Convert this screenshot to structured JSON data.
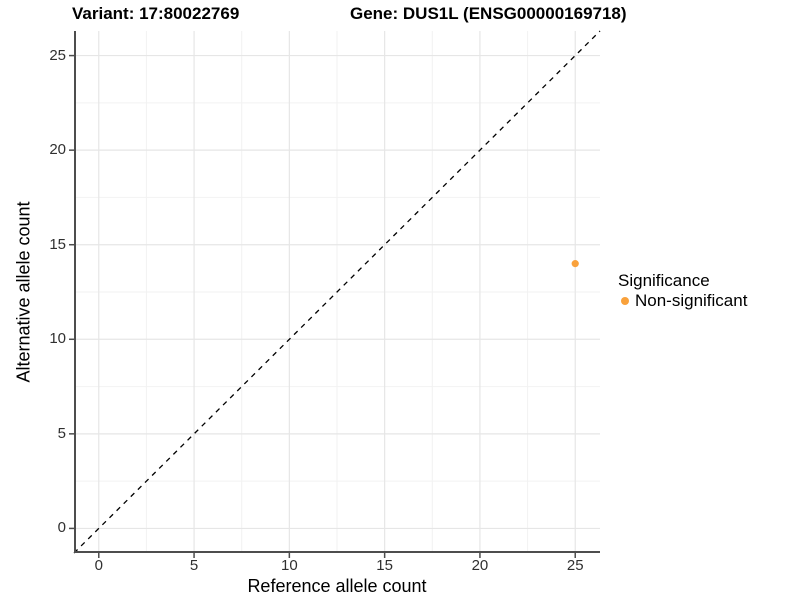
{
  "titles": {
    "variant": "Variant: 17:80022769",
    "gene": "Gene: DUS1L (ENSG00000169718)"
  },
  "chart_data": {
    "type": "scatter",
    "title_left": "Variant: 17:80022769",
    "title_right": "Gene: DUS1L (ENSG00000169718)",
    "xlabel": "Reference allele count",
    "ylabel": "Alternative allele count",
    "x_ticks": [
      0,
      5,
      10,
      15,
      20,
      25
    ],
    "y_ticks": [
      0,
      5,
      10,
      15,
      20,
      25
    ],
    "x_minor_ticks": [
      2.5,
      7.5,
      12.5,
      17.5,
      22.5
    ],
    "y_minor_ticks": [
      2.5,
      7.5,
      12.5,
      17.5,
      22.5
    ],
    "xlim": [
      -1.3,
      26.3
    ],
    "ylim": [
      -1.3,
      26.3
    ],
    "grid": "major+minor",
    "points": [
      {
        "x": 25,
        "y": 14,
        "series": "Non-significant",
        "color": "#F9A13B"
      }
    ],
    "reference_line": {
      "type": "identity",
      "style": "dashed",
      "color": "#000000"
    },
    "legend": {
      "title": "Significance",
      "position": "right",
      "entries": [
        {
          "label": "Non-significant",
          "color": "#F9A13B"
        }
      ]
    }
  },
  "colors": {
    "accent_point": "#F9A13B",
    "axis_line": "#4D4D4D",
    "grid_major": "#E6E6E6",
    "grid_minor": "#F2F2F2",
    "tick_text": "#303030"
  }
}
